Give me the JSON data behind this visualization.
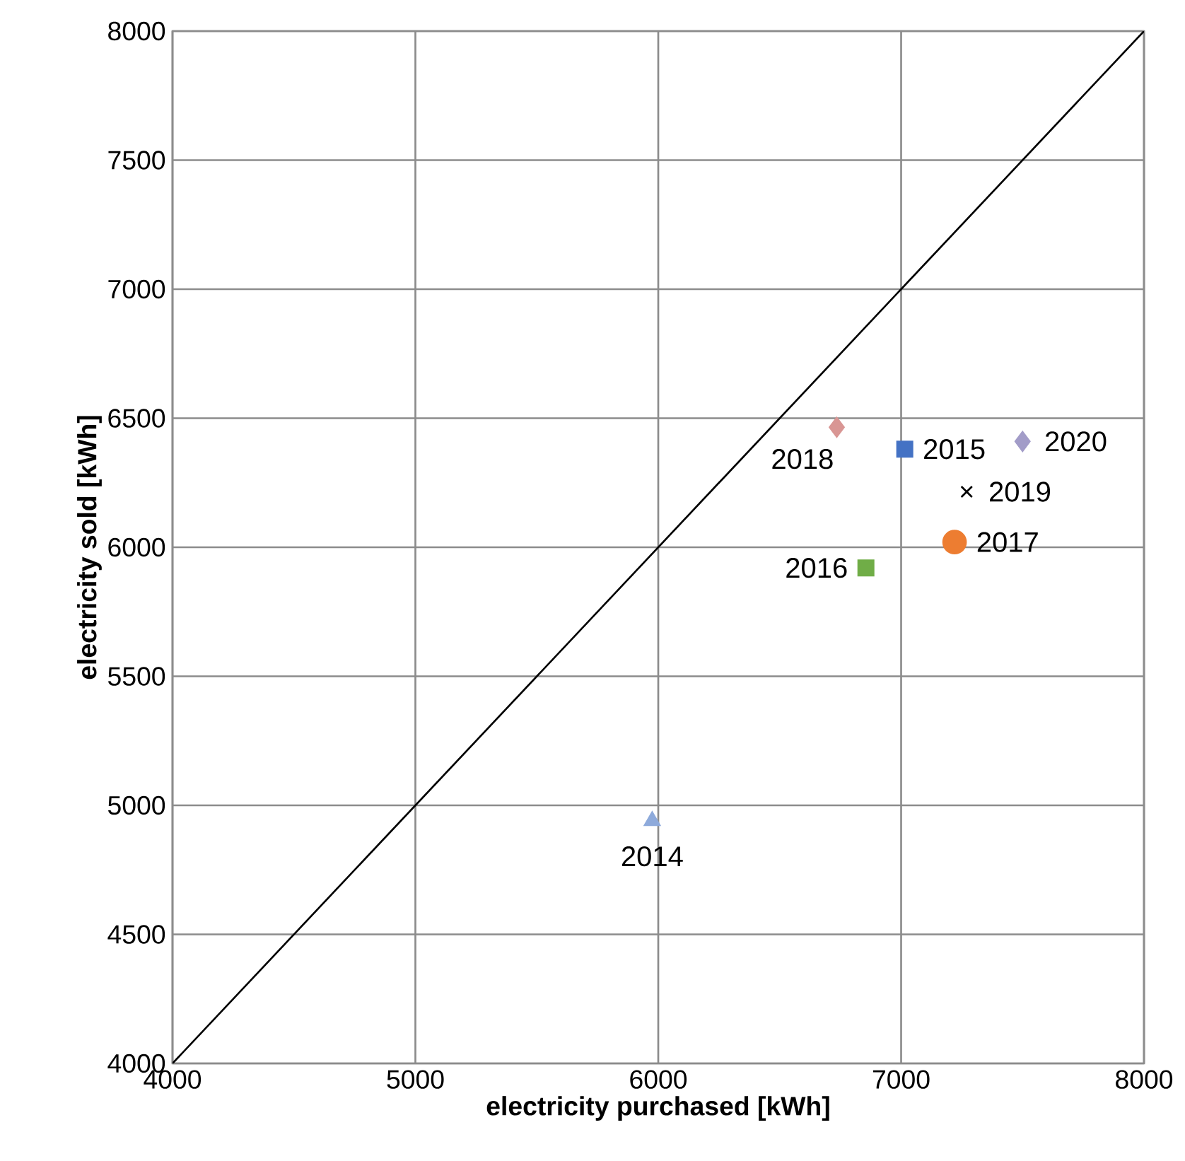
{
  "chart_data": {
    "type": "scatter",
    "xlabel": "electricity purchased [kWh]",
    "ylabel": "electricity sold [kWh]",
    "xlim": [
      4000,
      8000
    ],
    "ylim": [
      4000,
      8000
    ],
    "xticks": [
      4000,
      5000,
      6000,
      7000,
      8000
    ],
    "yticks": [
      4000,
      4500,
      5000,
      5500,
      6000,
      6500,
      7000,
      7500,
      8000
    ],
    "grid": true,
    "series": [
      {
        "type": "line",
        "color": "#000000",
        "marker": "none",
        "x": [
          4000,
          8000
        ],
        "values": [
          4000,
          8000
        ]
      },
      {
        "name": "2014",
        "color": "#8eaadb",
        "marker": "triangle",
        "x": [
          5975
        ],
        "values": [
          4940
        ]
      },
      {
        "name": "2015",
        "color": "#4472c4",
        "marker": "square",
        "x": [
          7015
        ],
        "values": [
          6380
        ]
      },
      {
        "name": "2016",
        "color": "#70ad47",
        "marker": "square",
        "x": [
          6855
        ],
        "values": [
          5920
        ]
      },
      {
        "name": "2017",
        "color": "#ed7d31",
        "marker": "circle",
        "x": [
          7220
        ],
        "values": [
          6020
        ]
      },
      {
        "name": "2018",
        "color": "#d99694",
        "marker": "diamond",
        "x": [
          6735
        ],
        "values": [
          6465
        ]
      },
      {
        "name": "2019",
        "color": "#000000",
        "marker": "cross",
        "x": [
          7270
        ],
        "values": [
          6215
        ]
      },
      {
        "name": "2020",
        "color": "#a29cc8",
        "marker": "diamond",
        "x": [
          7500
        ],
        "values": [
          6410
        ]
      }
    ]
  }
}
